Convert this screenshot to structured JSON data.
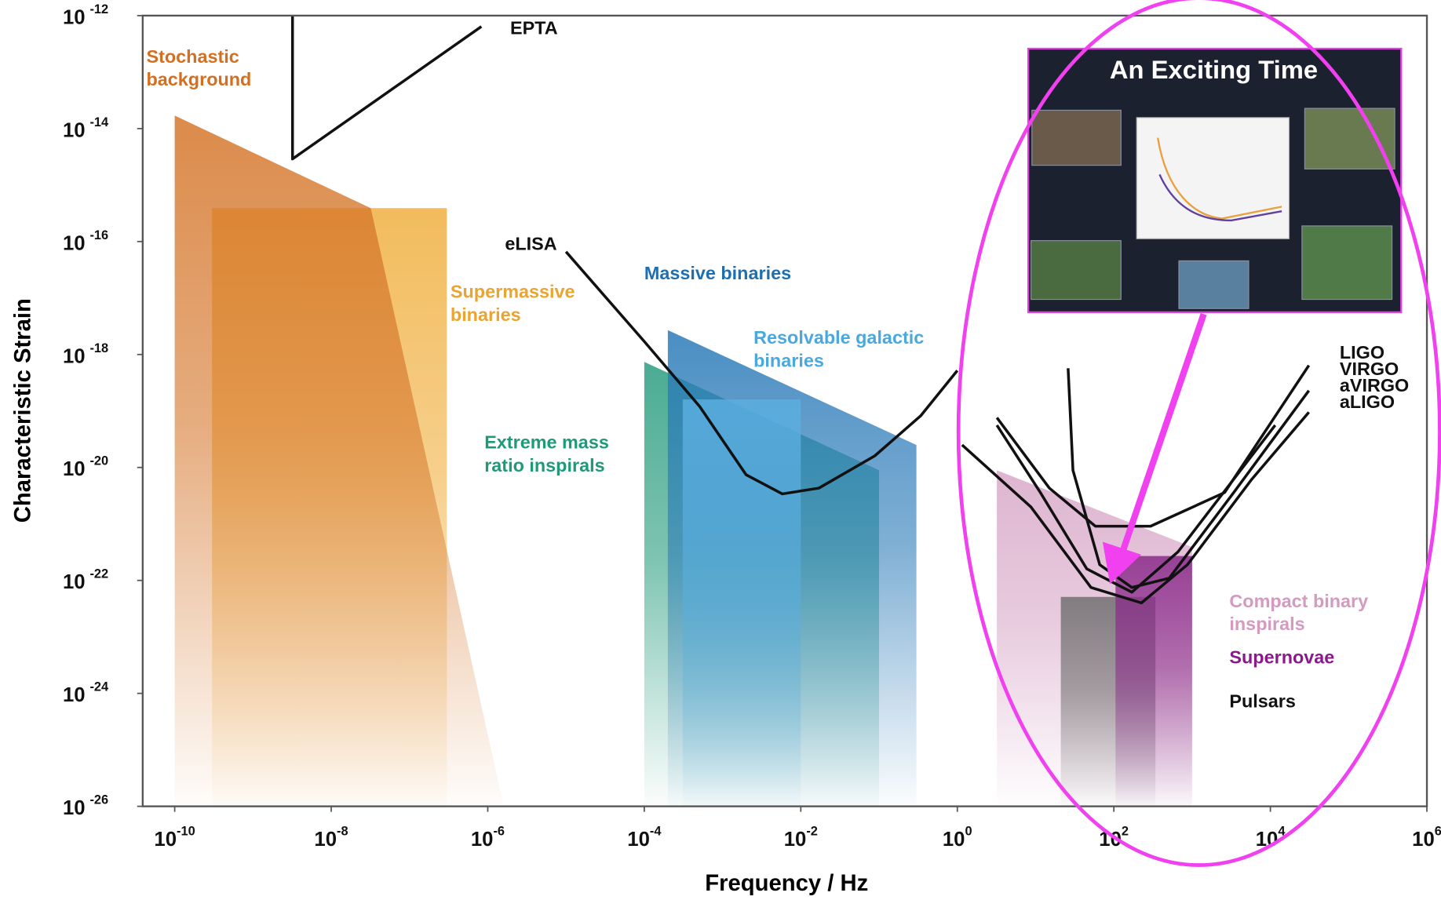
{
  "chart_data": {
    "type": "line",
    "log_x": true,
    "log_y": true,
    "xlabel": "Frequency / Hz",
    "ylabel": "Characteristic Strain",
    "xlim": [
      3.9e-11,
      1000000.0
    ],
    "ylim": [
      1e-26,
      1e-12
    ],
    "xticks": [
      {
        "value": 1e-10,
        "label": "10",
        "exponent": "-10"
      },
      {
        "value": 1e-08,
        "label": "10",
        "exponent": "-8"
      },
      {
        "value": 1e-06,
        "label": "10",
        "exponent": "-6"
      },
      {
        "value": 0.0001,
        "label": "10",
        "exponent": "-4"
      },
      {
        "value": 0.01,
        "label": "10",
        "exponent": "-2"
      },
      {
        "value": 1,
        "label": "10",
        "exponent": "0"
      },
      {
        "value": 100,
        "label": "10",
        "exponent": "2"
      },
      {
        "value": 10000,
        "label": "10",
        "exponent": "4"
      },
      {
        "value": 1000000,
        "label": "10",
        "exponent": "6"
      }
    ],
    "yticks": [
      {
        "value": 1e-26,
        "label": "10",
        "exponent": "-26"
      },
      {
        "value": 1e-24,
        "label": "10",
        "exponent": "-24"
      },
      {
        "value": 1e-22,
        "label": "10",
        "exponent": "-22"
      },
      {
        "value": 1e-20,
        "label": "10",
        "exponent": "-20"
      },
      {
        "value": 1e-18,
        "label": "10",
        "exponent": "-18"
      },
      {
        "value": 1e-16,
        "label": "10",
        "exponent": "-16"
      },
      {
        "value": 1e-14,
        "label": "10",
        "exponent": "-14"
      },
      {
        "value": 1e-12,
        "label": "10",
        "exponent": "-12"
      }
    ],
    "series": [
      {
        "name": "EPTA",
        "color": "#111111",
        "x": [
          3.2e-09,
          3.2e-09,
          8.3e-07
        ],
        "y": [
          1e-12,
          2.9e-15,
          6.4e-13
        ]
      },
      {
        "name": "eLISA",
        "color": "#111111",
        "x": [
          1e-05,
          0.0001,
          0.00051,
          0.002,
          0.0058,
          0.017,
          0.088,
          0.34,
          1
        ],
        "y": [
          6.6e-17,
          1.7e-18,
          1.2e-19,
          7.4e-21,
          3.4e-21,
          4.3e-21,
          1.6e-20,
          8.2e-20,
          5.2e-19
        ]
      },
      {
        "name": "LIGO",
        "color": "#111111",
        "x": [
          3.2,
          15,
          58,
          295,
          2600,
          31000
        ],
        "y": [
          7.6e-20,
          4.3e-21,
          9.1e-22,
          9.1e-22,
          3.6e-21,
          6.4e-19
        ]
      },
      {
        "name": "VIRGO",
        "color": "#111111",
        "x": [
          26,
          30,
          66,
          170,
          510,
          3400,
          31000
        ],
        "y": [
          5.7e-19,
          8.9e-21,
          1.9e-22,
          7.5e-23,
          1.1e-22,
          3.6e-21,
          2.3e-19
        ]
      },
      {
        "name": "aVIRGO",
        "color": "#111111",
        "x": [
          1.15,
          8.7,
          51,
          225,
          870,
          5800,
          31000
        ],
        "y": [
          2.5e-20,
          2e-21,
          7.5e-23,
          4e-23,
          1.9e-22,
          6.2e-21,
          9.5e-20
        ]
      },
      {
        "name": "aLIGO",
        "color": "#111111",
        "x": [
          3.2,
          11.5,
          45,
          170,
          660,
          11500
        ],
        "y": [
          5.6e-20,
          3.6e-21,
          1.6e-22,
          6.2e-23,
          3.2e-22,
          5.6e-20
        ]
      }
    ],
    "regions": [
      {
        "name": [
          "Supermassive",
          "binaries"
        ],
        "color": "#f0b040",
        "label_color": "#e9a431",
        "x": [
          3e-10,
          3e-07,
          3e-07,
          3e-10
        ],
        "y": [
          3.9e-16,
          3.9e-16,
          1e-26,
          1e-26
        ]
      },
      {
        "name": [
          "Stochastic",
          "background"
        ],
        "color": "#d5762a",
        "label_color": "#d46f20",
        "x": [
          1e-10,
          3.2e-08,
          1.6e-06,
          1e-10
        ],
        "y": [
          1.7e-14,
          3.9e-16,
          1e-26,
          1e-26
        ]
      },
      {
        "name": [
          "Extreme mass",
          "ratio inspirals"
        ],
        "color": "#2a9d7f",
        "label_color": "#1e9a7a",
        "x": [
          0.0001,
          0.1,
          0.1,
          0.0001
        ],
        "y": [
          7.4e-19,
          8.9e-21,
          1e-26,
          1e-26
        ]
      },
      {
        "name": [
          "Massive binaries"
        ],
        "color": "#2a7ab8",
        "label_color": "#1f6fb0",
        "x": [
          0.0002,
          0.3,
          0.3,
          0.0002
        ],
        "y": [
          2.7e-18,
          2.5e-20,
          1e-26,
          1e-26
        ]
      },
      {
        "name": [
          "Resolvable galactic",
          "binaries"
        ],
        "color": "#5aaee0",
        "label_color": "#4aa8e0",
        "x": [
          0.00031,
          0.01,
          0.01,
          0.00031
        ],
        "y": [
          1.6e-19,
          1.6e-19,
          1e-26,
          1e-26
        ]
      },
      {
        "name": [
          "Compact binary",
          "inspirals"
        ],
        "color": "#d8a8c8",
        "label_color": "#d49ac0",
        "x": [
          3.2,
          1000,
          1000,
          3.2
        ],
        "y": [
          8.9e-21,
          3.9e-22,
          1e-26,
          1e-26
        ]
      },
      {
        "name": [
          "Pulsars"
        ],
        "color": "#707070",
        "label_color": "#111111",
        "x": [
          21,
          340,
          340,
          21
        ],
        "y": [
          5.1e-23,
          5.1e-23,
          1e-26,
          1e-26
        ]
      },
      {
        "name": [
          "Supernovae"
        ],
        "color": "#8a2a8a",
        "label_color": "#8a1a8a",
        "x": [
          105,
          1000,
          1000,
          105
        ],
        "y": [
          2.7e-22,
          2.7e-22,
          1e-26,
          1e-26
        ]
      }
    ]
  },
  "inset": {
    "title": "An Exciting Time"
  }
}
